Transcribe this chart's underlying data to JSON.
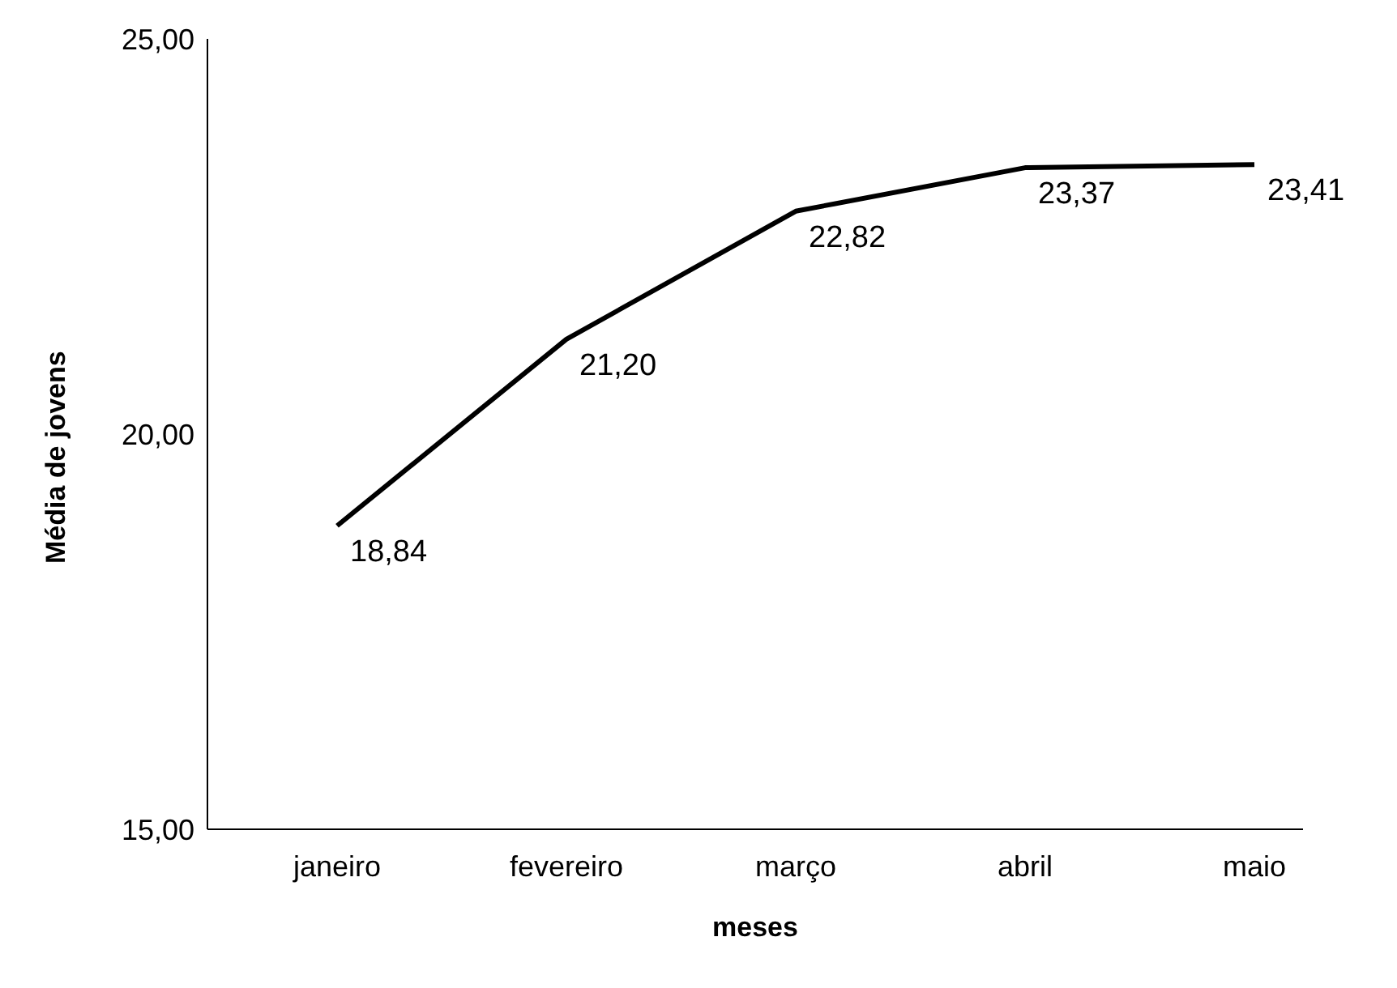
{
  "chart_data": {
    "type": "line",
    "xlabel": "meses",
    "ylabel": "Média de jovens",
    "categories": [
      "janeiro",
      "fevereiro",
      "março",
      "abril",
      "maio"
    ],
    "series": [
      {
        "color": "#000000",
        "values": [
          18.84,
          21.2,
          22.82,
          23.37,
          23.41
        ],
        "value_labels": [
          "18,84",
          "21,20",
          "22,82",
          "23,37",
          "23,41"
        ]
      }
    ],
    "ylim": [
      15,
      25
    ],
    "yticks": [
      {
        "value": 15,
        "label": "15,00"
      },
      {
        "value": 20,
        "label": "20,00"
      },
      {
        "value": 25,
        "label": "25,00"
      }
    ],
    "grid": false,
    "legend": false,
    "marker": "none",
    "line_style": "solid"
  }
}
